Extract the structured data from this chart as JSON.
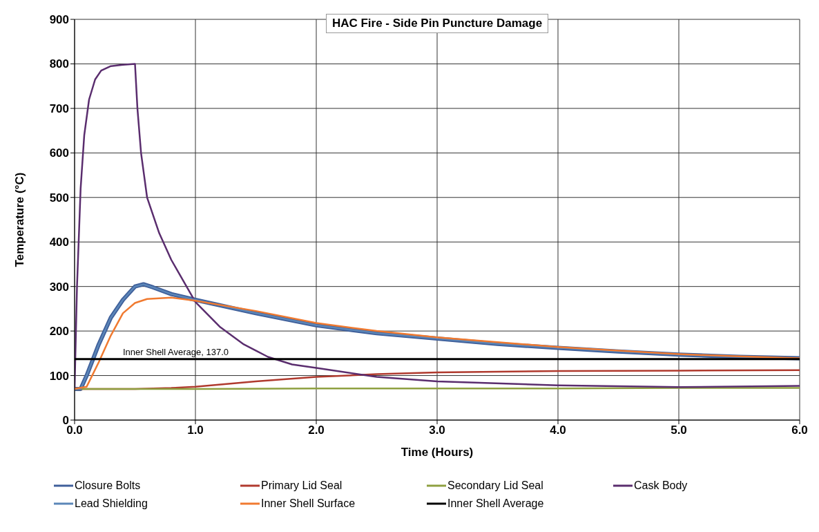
{
  "chart_data": {
    "type": "line",
    "title": "HAC Fire - Side Pin Puncture Damage",
    "xlabel": "Time (Hours)",
    "ylabel": "Temperature  (°C)",
    "xlim": [
      0,
      6
    ],
    "ylim": [
      0,
      900
    ],
    "xticks": [
      {
        "value": 0,
        "label": "0.0"
      },
      {
        "value": 1,
        "label": "1.0"
      },
      {
        "value": 2,
        "label": "2.0"
      },
      {
        "value": 3,
        "label": "3.0"
      },
      {
        "value": 4,
        "label": "4.0"
      },
      {
        "value": 5,
        "label": "5.0"
      },
      {
        "value": 6,
        "label": "6.0"
      }
    ],
    "yticks": [
      0,
      100,
      200,
      300,
      400,
      500,
      600,
      700,
      800,
      900
    ],
    "grid": true,
    "legend": "bottom",
    "marker": "none",
    "line_style": "solid",
    "annotations": [
      {
        "text": "Inner Shell Average, 137.0",
        "x": 0.4,
        "y": 137
      }
    ],
    "series": [
      {
        "name": "Closure Bolts",
        "color": "#3f5f9a",
        "x": [
          0,
          0.05,
          0.1,
          0.2,
          0.3,
          0.4,
          0.5,
          0.57,
          0.65,
          0.8,
          1,
          1.5,
          2,
          2.5,
          3,
          3.5,
          4,
          4.5,
          5,
          5.5,
          6
        ],
        "values": [
          70,
          70,
          100,
          170,
          230,
          270,
          300,
          305,
          298,
          283,
          270,
          240,
          213,
          195,
          183,
          171,
          162,
          154,
          147,
          142,
          139
        ]
      },
      {
        "name": "Primary Lid Seal",
        "color": "#b03a2e",
        "x": [
          0,
          0.5,
          0.8,
          1,
          1.5,
          2,
          2.5,
          3,
          4,
          5,
          6
        ],
        "values": [
          70,
          70,
          72,
          75,
          87,
          97,
          103,
          107,
          110,
          111,
          112
        ]
      },
      {
        "name": "Secondary Lid Seal",
        "color": "#8ea040",
        "x": [
          0,
          1,
          2,
          3,
          4,
          5,
          6
        ],
        "values": [
          70,
          70,
          71,
          71,
          71,
          72,
          72
        ]
      },
      {
        "name": "Cask Body",
        "color": "#5a2d6e",
        "x": [
          0,
          0.02,
          0.05,
          0.08,
          0.12,
          0.17,
          0.22,
          0.3,
          0.4,
          0.5,
          0.52,
          0.55,
          0.6,
          0.7,
          0.8,
          1,
          1.2,
          1.4,
          1.6,
          1.8,
          2,
          2.5,
          3,
          4,
          5,
          6
        ],
        "values": [
          70,
          300,
          520,
          640,
          720,
          765,
          785,
          795,
          798,
          800,
          700,
          600,
          500,
          420,
          360,
          265,
          210,
          170,
          142,
          125,
          117,
          97,
          87,
          78,
          74,
          77
        ]
      },
      {
        "name": "Lead Shielding",
        "color": "#5b86b8",
        "x": [
          0,
          0.05,
          0.1,
          0.2,
          0.3,
          0.4,
          0.5,
          0.57,
          0.65,
          0.8,
          1,
          1.5,
          2,
          2.5,
          3,
          3.5,
          4,
          4.5,
          5,
          5.5,
          6
        ],
        "values": [
          70,
          70,
          100,
          170,
          230,
          270,
          300,
          305,
          298,
          283,
          270,
          240,
          213,
          195,
          183,
          171,
          162,
          154,
          147,
          142,
          139
        ]
      },
      {
        "name": "Inner Shell Surface",
        "color": "#f07a30",
        "x": [
          0,
          0.1,
          0.2,
          0.3,
          0.4,
          0.5,
          0.6,
          0.8,
          1,
          1.5,
          2,
          2.5,
          3,
          3.5,
          4,
          4.5,
          5,
          5.5,
          6
        ],
        "values": [
          70,
          75,
          130,
          190,
          240,
          263,
          272,
          275,
          268,
          245,
          218,
          200,
          186,
          175,
          164,
          156,
          148,
          143,
          139
        ]
      },
      {
        "name": "Inner Shell Average",
        "color": "#000000",
        "x": [
          0,
          6
        ],
        "values": [
          137,
          137
        ]
      }
    ]
  }
}
